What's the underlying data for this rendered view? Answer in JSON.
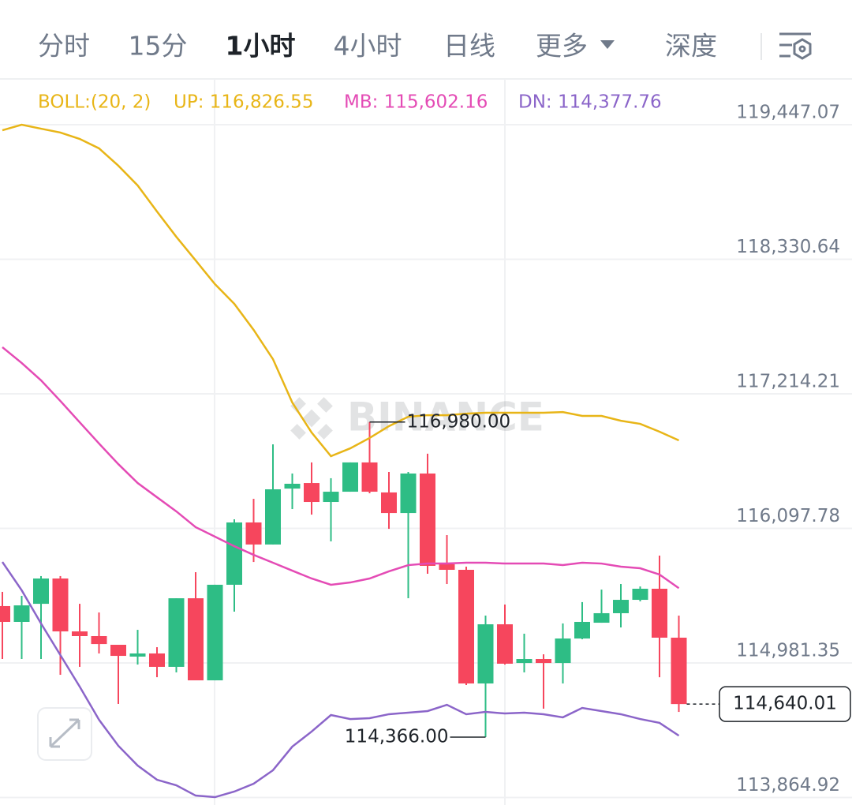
{
  "tabs": [
    "分时",
    "15分",
    "1小时",
    "4小时",
    "日线",
    "更多",
    "深度"
  ],
  "chart_data": {
    "type": "candlestick",
    "indicator": "BOLL:(20, 2)",
    "indicator_color": "#e8b517",
    "watermark": "BINANCE",
    "up_color": "#2ebd85",
    "down_color": "#f6465d",
    "ylim": [
      113802.7,
      119826.9
    ],
    "yticks": [
      {
        "value": 119447.07,
        "label": "119,447.07"
      },
      {
        "value": 118330.64,
        "label": "118,330.64"
      },
      {
        "value": 117214.21,
        "label": "117,214.21"
      },
      {
        "value": 116097.78,
        "label": "116,097.78"
      },
      {
        "value": 114981.35,
        "label": "114,981.35"
      },
      {
        "value": 113864.92,
        "label": "113,864.92"
      }
    ],
    "grid": true,
    "open": [
      115453,
      115322,
      115472,
      115682,
      115243,
      115204,
      115132,
      115034,
      115060,
      114949,
      115518,
      114837,
      115630,
      116147,
      115964,
      116428,
      116474,
      116317,
      116402,
      116645,
      116396,
      116225,
      116553,
      115800,
      115754,
      114811,
      115302,
      114981,
      115014,
      114981,
      115184,
      115315,
      115394,
      115505,
      115597,
      115191
    ],
    "high": [
      115571,
      115538,
      115702,
      115702,
      115472,
      115400,
      115132,
      115256,
      115112,
      115518,
      115734,
      115630,
      116173,
      116343,
      116795,
      116553,
      116645,
      116514,
      116645,
      116980,
      116566,
      116566,
      116717,
      116042,
      115780,
      115374,
      115466,
      115224,
      115053,
      115309,
      115486,
      115590,
      115636,
      115616,
      115872,
      115374
    ],
    "low": [
      115014,
      115014,
      115014,
      114883,
      114949,
      115060,
      114641,
      114968,
      114863,
      114903,
      114837,
      114837,
      115407,
      115819,
      115964,
      116258,
      116212,
      115990,
      116402,
      116389,
      116094,
      115518,
      115721,
      115636,
      114798,
      114366,
      114968,
      114903,
      114602,
      114811,
      115178,
      115315,
      115276,
      115492,
      114863,
      114575
    ],
    "close": [
      115322,
      115459,
      115682,
      115243,
      115204,
      115138,
      115040,
      115060,
      114949,
      115518,
      114837,
      115630,
      116147,
      115964,
      116422,
      116468,
      116317,
      116402,
      116645,
      116402,
      116225,
      116553,
      115787,
      115754,
      114811,
      115302,
      114975,
      115014,
      114981,
      115184,
      115322,
      115394,
      115505,
      115597,
      115191,
      114640.01
    ],
    "series": [
      {
        "name": "UP: 116,826.55",
        "color": "#e8b517",
        "values": [
          119401,
          119447,
          119414,
          119382,
          119329,
          119251,
          119107,
          118943,
          118727,
          118517,
          118321,
          118124,
          117961,
          117745,
          117502,
          117142,
          116893,
          116697,
          116762,
          116848,
          116946,
          117024,
          117037,
          117037,
          117050,
          117057,
          117057,
          117057,
          117057,
          117063,
          117031,
          117031,
          116991,
          116965,
          116900,
          116828
        ]
      },
      {
        "name": "MB: 115,602.16",
        "color": "#e44bb5",
        "values": [
          117601,
          117470,
          117326,
          117155,
          116978,
          116802,
          116631,
          116474,
          116356,
          116239,
          116108,
          116029,
          115950,
          115878,
          115813,
          115747,
          115682,
          115630,
          115649,
          115682,
          115741,
          115793,
          115806,
          115806,
          115813,
          115813,
          115806,
          115806,
          115806,
          115793,
          115813,
          115806,
          115780,
          115767,
          115715,
          115602
        ]
      },
      {
        "name": "DN: 114,377.76",
        "color": "#8b65c9",
        "values": [
          115819,
          115584,
          115309,
          115047,
          114785,
          114510,
          114294,
          114130,
          114012,
          113966,
          113881,
          113868,
          113914,
          113979,
          114091,
          114287,
          114412,
          114549,
          114516,
          114523,
          114556,
          114569,
          114582,
          114634,
          114556,
          114575,
          114562,
          114569,
          114556,
          114530,
          114608,
          114582,
          114556,
          114516,
          114484,
          114378
        ]
      }
    ],
    "annotations": [
      {
        "value": 116980,
        "label": "116,980.00"
      },
      {
        "value": 114366,
        "label": "114,366.00"
      }
    ],
    "last_price": {
      "value": 114640.01,
      "label": "114,640.01"
    }
  }
}
